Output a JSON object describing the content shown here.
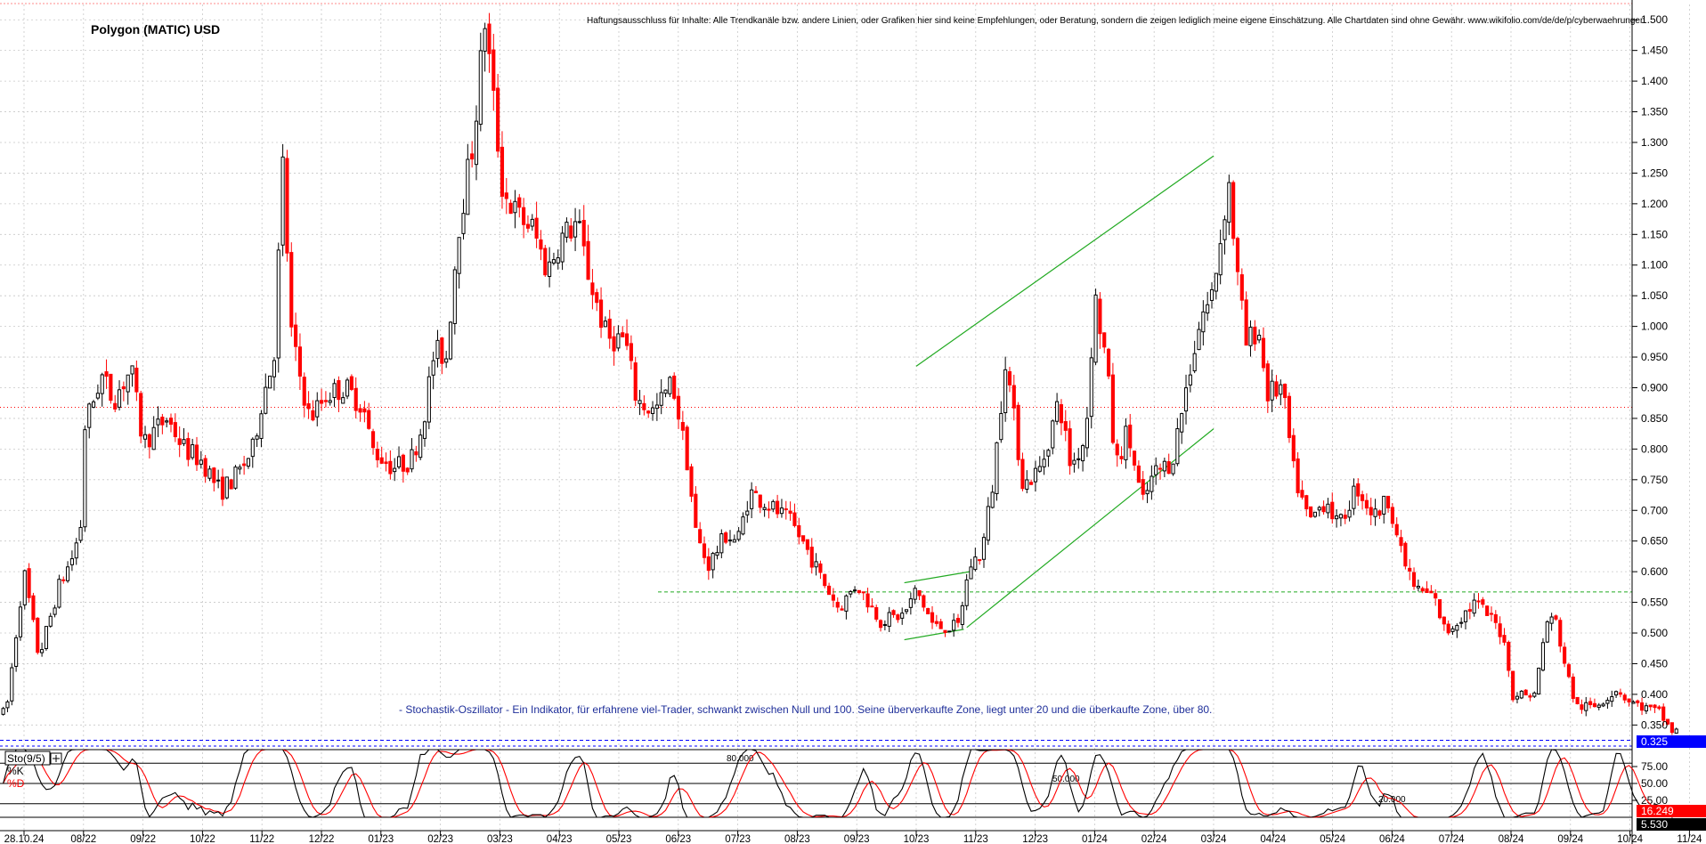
{
  "header": {
    "title": "Polygon (MATIC) USD",
    "disclaimer": "Haftungsausschluss für Inhalte: Alle Trendkanäle bzw. andere Linien, oder Grafiken hier sind keine Empfehlungen, oder Beratung, sondern die zeigen lediglich meine eigene Einschätzung. Alle Chartdaten sind ohne Gewähr. www.wikifolio.com/de/de/p/cyberwaehrungen"
  },
  "annotation": "- Stochastik-Oszillator - Ein Indikator, für erfahrene viel-Trader, schwankt zwischen Null und 100. Seine überverkaufte Zone, liegt unter 20 und die überkaufte Zone, über 80.",
  "colors": {
    "up_candle": "#000000",
    "down_candle": "#ff0000",
    "trendline": "#22aa22",
    "price_badge": "#0000ff",
    "k_line": "#000000",
    "d_line": "#ff0000",
    "d_badge": "#ff0000",
    "k_badge": "#000000",
    "grid": "#c8c8c8"
  },
  "chart_data": [
    {
      "type": "candlestick",
      "title": "Polygon (MATIC) USD",
      "x_labels": [
        "28.10.24",
        "08/22",
        "09/22",
        "10/22",
        "11/22",
        "12/22",
        "01/23",
        "02/23",
        "03/23",
        "04/23",
        "05/23",
        "06/23",
        "07/23",
        "08/23",
        "09/23",
        "10/23",
        "11/23",
        "12/23",
        "01/24",
        "02/24",
        "03/24",
        "04/24",
        "05/24",
        "06/24",
        "07/24",
        "08/24",
        "09/24",
        "10/24",
        "11/24"
      ],
      "y_ticks": [
        "1.500",
        "1.450",
        "1.400",
        "1.350",
        "1.300",
        "1.250",
        "1.200",
        "1.150",
        "1.100",
        "1.050",
        "1.000",
        "0.950",
        "0.900",
        "0.850",
        "0.800",
        "0.750",
        "0.700",
        "0.650",
        "0.600",
        "0.550",
        "0.500",
        "0.450",
        "0.400",
        "0.350"
      ],
      "ylim": [
        0.32,
        1.525
      ],
      "grid": true,
      "last_price": "0.325",
      "horizontal_levels": [
        {
          "value": 0.868,
          "style": "dotted",
          "color": "#ff0000"
        },
        {
          "value": 0.567,
          "style": "dashed",
          "color": "#22aa22"
        },
        {
          "value": 0.325,
          "style": "dashed",
          "color": "#0000ff"
        }
      ],
      "trendlines": [
        {
          "x0": 14.8,
          "y0": 0.582,
          "x1": 15.9,
          "y1": 0.6
        },
        {
          "x0": 14.8,
          "y0": 0.489,
          "x1": 15.8,
          "y1": 0.506
        },
        {
          "x0": 15.85,
          "y0": 0.509,
          "x1": 20.0,
          "y1": 0.833
        },
        {
          "x0": 15.0,
          "y0": 0.935,
          "x1": 20.0,
          "y1": 1.278
        }
      ],
      "anchors": [
        [
          -0.3,
          0.37
        ],
        [
          0.0,
          0.6
        ],
        [
          0.25,
          0.46
        ],
        [
          0.6,
          0.58
        ],
        [
          0.8,
          0.62
        ],
        [
          0.95,
          0.67
        ],
        [
          1.0,
          0.83
        ],
        [
          1.3,
          0.92
        ],
        [
          1.5,
          0.88
        ],
        [
          1.8,
          0.93
        ],
        [
          2.0,
          0.81
        ],
        [
          2.4,
          0.85
        ],
        [
          2.7,
          0.8
        ],
        [
          3.0,
          0.78
        ],
        [
          3.3,
          0.73
        ],
        [
          3.6,
          0.76
        ],
        [
          3.85,
          0.8
        ],
        [
          4.0,
          0.88
        ],
        [
          4.2,
          0.95
        ],
        [
          4.35,
          1.26
        ],
        [
          4.5,
          0.98
        ],
        [
          4.8,
          0.85
        ],
        [
          5.1,
          0.89
        ],
        [
          5.4,
          0.9
        ],
        [
          5.7,
          0.87
        ],
        [
          5.85,
          0.8
        ],
        [
          6.2,
          0.77
        ],
        [
          6.5,
          0.78
        ],
        [
          6.7,
          0.84
        ],
        [
          6.9,
          0.96
        ],
        [
          7.1,
          0.95
        ],
        [
          7.3,
          1.16
        ],
        [
          7.55,
          1.3
        ],
        [
          7.75,
          1.5
        ],
        [
          7.9,
          1.36
        ],
        [
          8.05,
          1.22
        ],
        [
          8.3,
          1.18
        ],
        [
          8.55,
          1.16
        ],
        [
          8.8,
          1.09
        ],
        [
          9.0,
          1.14
        ],
        [
          9.3,
          1.17
        ],
        [
          9.5,
          1.08
        ],
        [
          9.8,
          0.98
        ],
        [
          10.1,
          0.98
        ],
        [
          10.3,
          0.88
        ],
        [
          10.6,
          0.86
        ],
        [
          10.9,
          0.91
        ],
        [
          11.15,
          0.78
        ],
        [
          11.3,
          0.66
        ],
        [
          11.5,
          0.61
        ],
        [
          11.8,
          0.66
        ],
        [
          12.0,
          0.65
        ],
        [
          12.2,
          0.73
        ],
        [
          12.5,
          0.71
        ],
        [
          12.9,
          0.68
        ],
        [
          13.2,
          0.63
        ],
        [
          13.4,
          0.59
        ],
        [
          13.7,
          0.54
        ],
        [
          14.0,
          0.58
        ],
        [
          14.4,
          0.52
        ],
        [
          14.8,
          0.53
        ],
        [
          15.0,
          0.57
        ],
        [
          15.3,
          0.51
        ],
        [
          15.7,
          0.51
        ],
        [
          15.9,
          0.61
        ],
        [
          16.1,
          0.63
        ],
        [
          16.3,
          0.75
        ],
        [
          16.5,
          0.95
        ],
        [
          16.8,
          0.74
        ],
        [
          17.1,
          0.77
        ],
        [
          17.4,
          0.88
        ],
        [
          17.6,
          0.77
        ],
        [
          17.85,
          0.82
        ],
        [
          18.0,
          1.05
        ],
        [
          18.2,
          0.94
        ],
        [
          18.35,
          0.77
        ],
        [
          18.55,
          0.83
        ],
        [
          18.8,
          0.71
        ],
        [
          19.0,
          0.76
        ],
        [
          19.3,
          0.78
        ],
        [
          19.6,
          0.93
        ],
        [
          19.8,
          1.02
        ],
        [
          19.95,
          1.04
        ],
        [
          20.1,
          1.13
        ],
        [
          20.25,
          1.24
        ],
        [
          20.4,
          1.08
        ],
        [
          20.55,
          0.97
        ],
        [
          20.75,
          1.0
        ],
        [
          20.9,
          0.89
        ],
        [
          21.15,
          0.9
        ],
        [
          21.35,
          0.76
        ],
        [
          21.6,
          0.68
        ],
        [
          21.9,
          0.72
        ],
        [
          22.1,
          0.67
        ],
        [
          22.4,
          0.74
        ],
        [
          22.7,
          0.69
        ],
        [
          22.95,
          0.72
        ],
        [
          23.15,
          0.63
        ],
        [
          23.4,
          0.57
        ],
        [
          23.7,
          0.56
        ],
        [
          23.9,
          0.5
        ],
        [
          24.1,
          0.52
        ],
        [
          24.4,
          0.55
        ],
        [
          24.7,
          0.52
        ],
        [
          24.9,
          0.49
        ],
        [
          25.0,
          0.4
        ],
        [
          25.15,
          0.4
        ],
        [
          25.4,
          0.4
        ],
        [
          25.6,
          0.52
        ],
        [
          25.75,
          0.52
        ],
        [
          25.95,
          0.43
        ],
        [
          26.1,
          0.38
        ],
        [
          26.4,
          0.38
        ],
        [
          26.8,
          0.41
        ],
        [
          26.95,
          0.39
        ],
        [
          27.2,
          0.38
        ],
        [
          27.5,
          0.37
        ],
        [
          27.7,
          0.34
        ]
      ],
      "candle_count": 390
    },
    {
      "type": "line",
      "title": "Sto(9/5)",
      "series": [
        {
          "name": "%K",
          "color": "#000000"
        },
        {
          "name": "%D",
          "color": "#ff0000"
        }
      ],
      "ylim": [
        0,
        100
      ],
      "y_ticks": [
        "75.00",
        "50.00",
        "25.00"
      ],
      "reference_lines": [
        {
          "value": 80,
          "label": "80.000"
        },
        {
          "value": 50,
          "label": "50.000"
        },
        {
          "value": 20,
          "label": "20.000"
        }
      ],
      "last_values": {
        "d": "16.249",
        "k": "5.530"
      }
    }
  ]
}
